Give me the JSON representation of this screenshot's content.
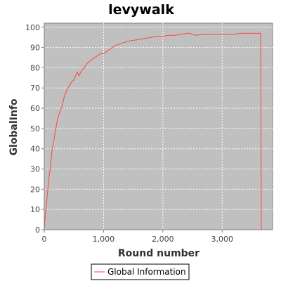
{
  "chart_data": {
    "type": "line",
    "title": "levywalk",
    "xlabel": "Round number",
    "ylabel": "GlobalInfo",
    "xlim": [
      0,
      3850
    ],
    "ylim": [
      0,
      102
    ],
    "xticks": [
      0,
      1000,
      2000,
      3000
    ],
    "xtick_labels": [
      "0",
      "1,000",
      "2,000",
      "3,000"
    ],
    "yticks": [
      0,
      10,
      20,
      30,
      40,
      50,
      60,
      70,
      80,
      90,
      100
    ],
    "ytick_labels": [
      "0",
      "10",
      "20",
      "30",
      "40",
      "50",
      "60",
      "70",
      "80",
      "90",
      "100"
    ],
    "grid": true,
    "plot_background": "#c0c0c0",
    "legend_position": "bottom",
    "series": [
      {
        "name": "Global Information",
        "color": "#ff4444",
        "x": [
          0,
          20,
          40,
          60,
          80,
          100,
          130,
          160,
          190,
          220,
          260,
          300,
          340,
          380,
          420,
          460,
          500,
          540,
          560,
          580,
          600,
          640,
          680,
          720,
          760,
          800,
          850,
          900,
          950,
          1000,
          1050,
          1100,
          1200,
          1300,
          1400,
          1500,
          1600,
          1700,
          1800,
          1900,
          2000,
          2100,
          2200,
          2300,
          2400,
          2450,
          2500,
          2550,
          2700,
          3000,
          3200,
          3300,
          3500,
          3650,
          3660
        ],
        "y": [
          0,
          8,
          14,
          20,
          26,
          30,
          39,
          44,
          49,
          54,
          58,
          61,
          66,
          69,
          71,
          73,
          74,
          77,
          78,
          76,
          77,
          79,
          80,
          82,
          83,
          84,
          85,
          86,
          87,
          87,
          88,
          89,
          91,
          92,
          93,
          93.5,
          94,
          94.5,
          95,
          95.5,
          95.5,
          96,
          96,
          96.5,
          97,
          97,
          96.5,
          96,
          96.5,
          96.5,
          96.5,
          97,
          97,
          97,
          0
        ]
      }
    ]
  }
}
